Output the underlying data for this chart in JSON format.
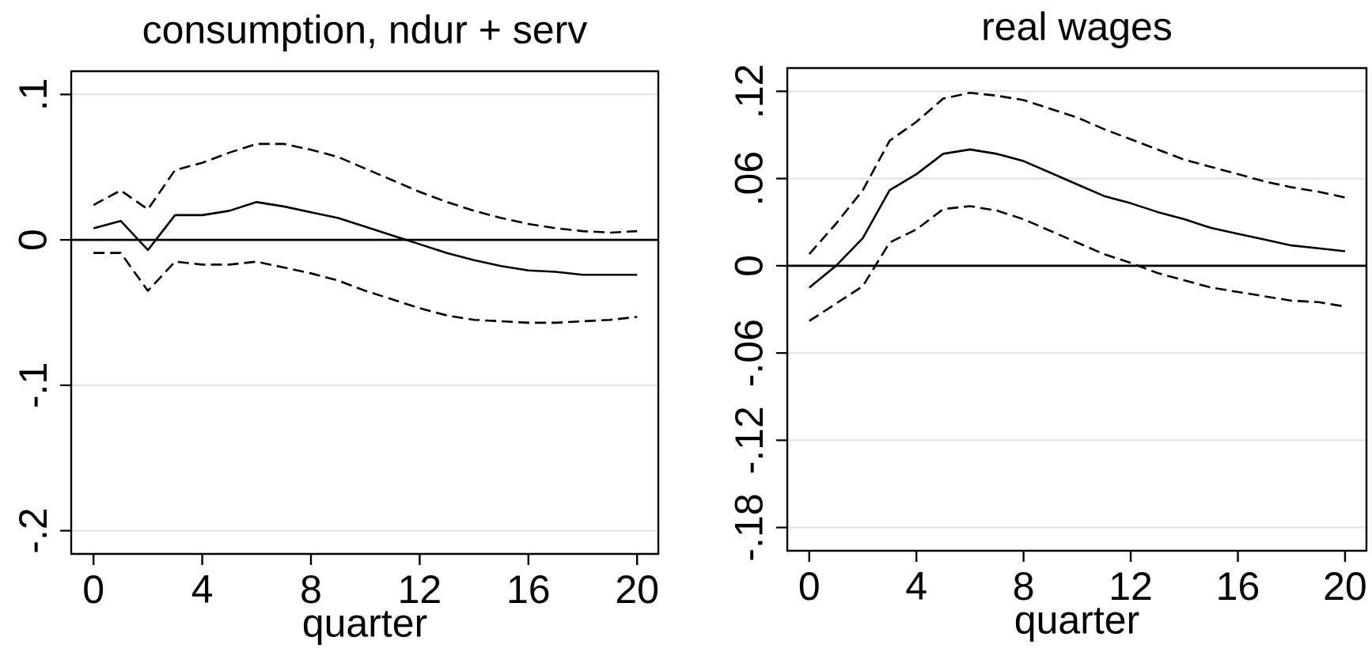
{
  "chart_data": [
    {
      "type": "line",
      "title": "consumption, ndur + serv",
      "xlabel": "quarter",
      "x": [
        0,
        1,
        2,
        3,
        4,
        5,
        6,
        7,
        8,
        9,
        10,
        11,
        12,
        13,
        14,
        15,
        16,
        17,
        18,
        19,
        20
      ],
      "xlim": [
        -0.82,
        20.78
      ],
      "ylim": [
        -0.216,
        0.116
      ],
      "xticks": [
        0,
        4,
        8,
        12,
        16,
        20
      ],
      "yticks": [
        {
          "value": -0.2,
          "label": "-.2"
        },
        {
          "value": -0.1,
          "label": "-.1"
        },
        0,
        {
          "value": 0.1,
          "label": ".1"
        }
      ],
      "grid": "y",
      "ref_lines": [
        {
          "axis": "y",
          "value": 0,
          "color": "#000000"
        }
      ],
      "series": [
        {
          "color": "#000000",
          "line_style": "dashed",
          "values": [
            0.024,
            0.034,
            0.021,
            0.048,
            0.053,
            0.06,
            0.066,
            0.066,
            0.062,
            0.057,
            0.049,
            0.041,
            0.033,
            0.026,
            0.02,
            0.015,
            0.011,
            0.008,
            0.006,
            0.005,
            0.006
          ]
        },
        {
          "color": "#000000",
          "line_style": "solid",
          "values": [
            0.008,
            0.013,
            -0.007,
            0.017,
            0.017,
            0.02,
            0.026,
            0.023,
            0.019,
            0.015,
            0.009,
            0.003,
            -0.003,
            -0.009,
            -0.014,
            -0.018,
            -0.021,
            -0.022,
            -0.024,
            -0.024,
            -0.024
          ]
        },
        {
          "color": "#000000",
          "line_style": "dashed",
          "values": [
            -0.009,
            -0.009,
            -0.035,
            -0.015,
            -0.017,
            -0.017,
            -0.015,
            -0.019,
            -0.023,
            -0.028,
            -0.035,
            -0.041,
            -0.047,
            -0.052,
            -0.055,
            -0.056,
            -0.057,
            -0.057,
            -0.056,
            -0.055,
            -0.053
          ]
        }
      ]
    },
    {
      "type": "line",
      "title": "real wages",
      "xlabel": "quarter",
      "x": [
        0,
        1,
        2,
        3,
        4,
        5,
        6,
        7,
        8,
        9,
        10,
        11,
        12,
        13,
        14,
        15,
        16,
        17,
        18,
        19,
        20
      ],
      "xlim": [
        -0.82,
        20.8
      ],
      "ylim": [
        -0.196,
        0.136
      ],
      "xticks": [
        0,
        4,
        8,
        12,
        16,
        20
      ],
      "yticks": [
        {
          "value": -0.18,
          "label": "-.18"
        },
        {
          "value": -0.12,
          "label": "-.12"
        },
        {
          "value": -0.06,
          "label": "-.06"
        },
        0,
        {
          "value": 0.06,
          "label": ".06"
        },
        {
          "value": 0.12,
          "label": ".12"
        }
      ],
      "grid": "y",
      "ref_lines": [
        {
          "axis": "y",
          "value": 0,
          "color": "#000000"
        }
      ],
      "series": [
        {
          "color": "#000000",
          "line_style": "dashed",
          "values": [
            0.008,
            0.029,
            0.052,
            0.086,
            0.099,
            0.115,
            0.119,
            0.117,
            0.114,
            0.108,
            0.102,
            0.094,
            0.087,
            0.08,
            0.073,
            0.068,
            0.063,
            0.058,
            0.054,
            0.051,
            0.047
          ]
        },
        {
          "color": "#000000",
          "line_style": "solid",
          "values": [
            -0.015,
            0.0,
            0.019,
            0.052,
            0.063,
            0.077,
            0.08,
            0.077,
            0.072,
            0.064,
            0.056,
            0.048,
            0.043,
            0.037,
            0.032,
            0.026,
            0.022,
            0.018,
            0.014,
            0.012,
            0.01
          ]
        },
        {
          "color": "#000000",
          "line_style": "dashed",
          "values": [
            -0.038,
            -0.026,
            -0.014,
            0.016,
            0.025,
            0.039,
            0.041,
            0.038,
            0.032,
            0.024,
            0.016,
            0.008,
            0.002,
            -0.005,
            -0.01,
            -0.015,
            -0.018,
            -0.021,
            -0.024,
            -0.025,
            -0.028
          ]
        }
      ]
    }
  ]
}
